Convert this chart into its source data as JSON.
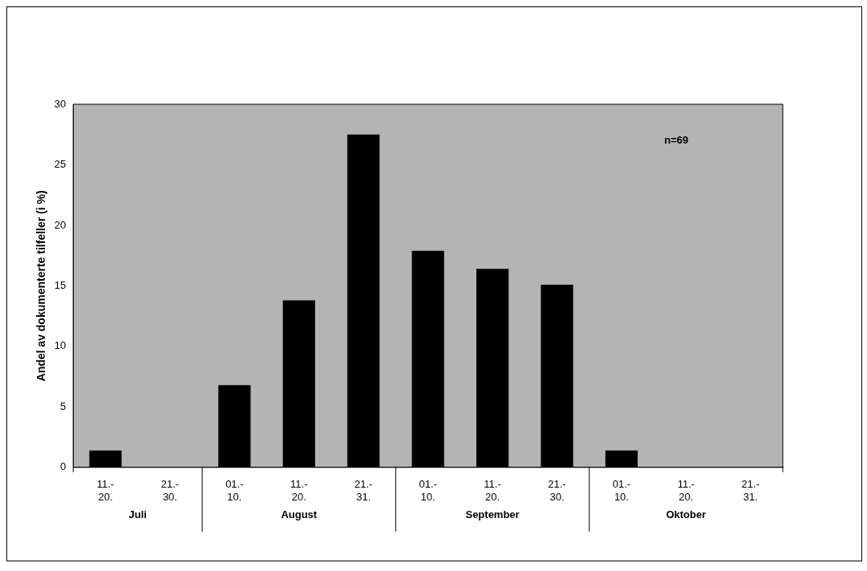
{
  "chart_data": {
    "type": "bar",
    "ylabel": "Andel av dokumenterte tilfeller (i %)",
    "categories": [
      "11.-\n20.",
      "21.-\n30.",
      "01.-\n10.",
      "11.-\n20.",
      "21.-\n31.",
      "01.-\n10.",
      "11.-\n20.",
      "21.-\n30.",
      "01.-\n10.",
      "11.-\n20.",
      "21.-\n31."
    ],
    "values": [
      1.4,
      0,
      6.8,
      13.8,
      27.5,
      17.9,
      16.4,
      15.1,
      1.4,
      0,
      0
    ],
    "color": "#000000",
    "ylim": [
      0,
      30
    ],
    "yticks": [
      0,
      5,
      10,
      15,
      20,
      25,
      30
    ],
    "grid": false,
    "annotations": [
      "Juli",
      "August",
      "September",
      "Oktober",
      "n=69"
    ]
  }
}
